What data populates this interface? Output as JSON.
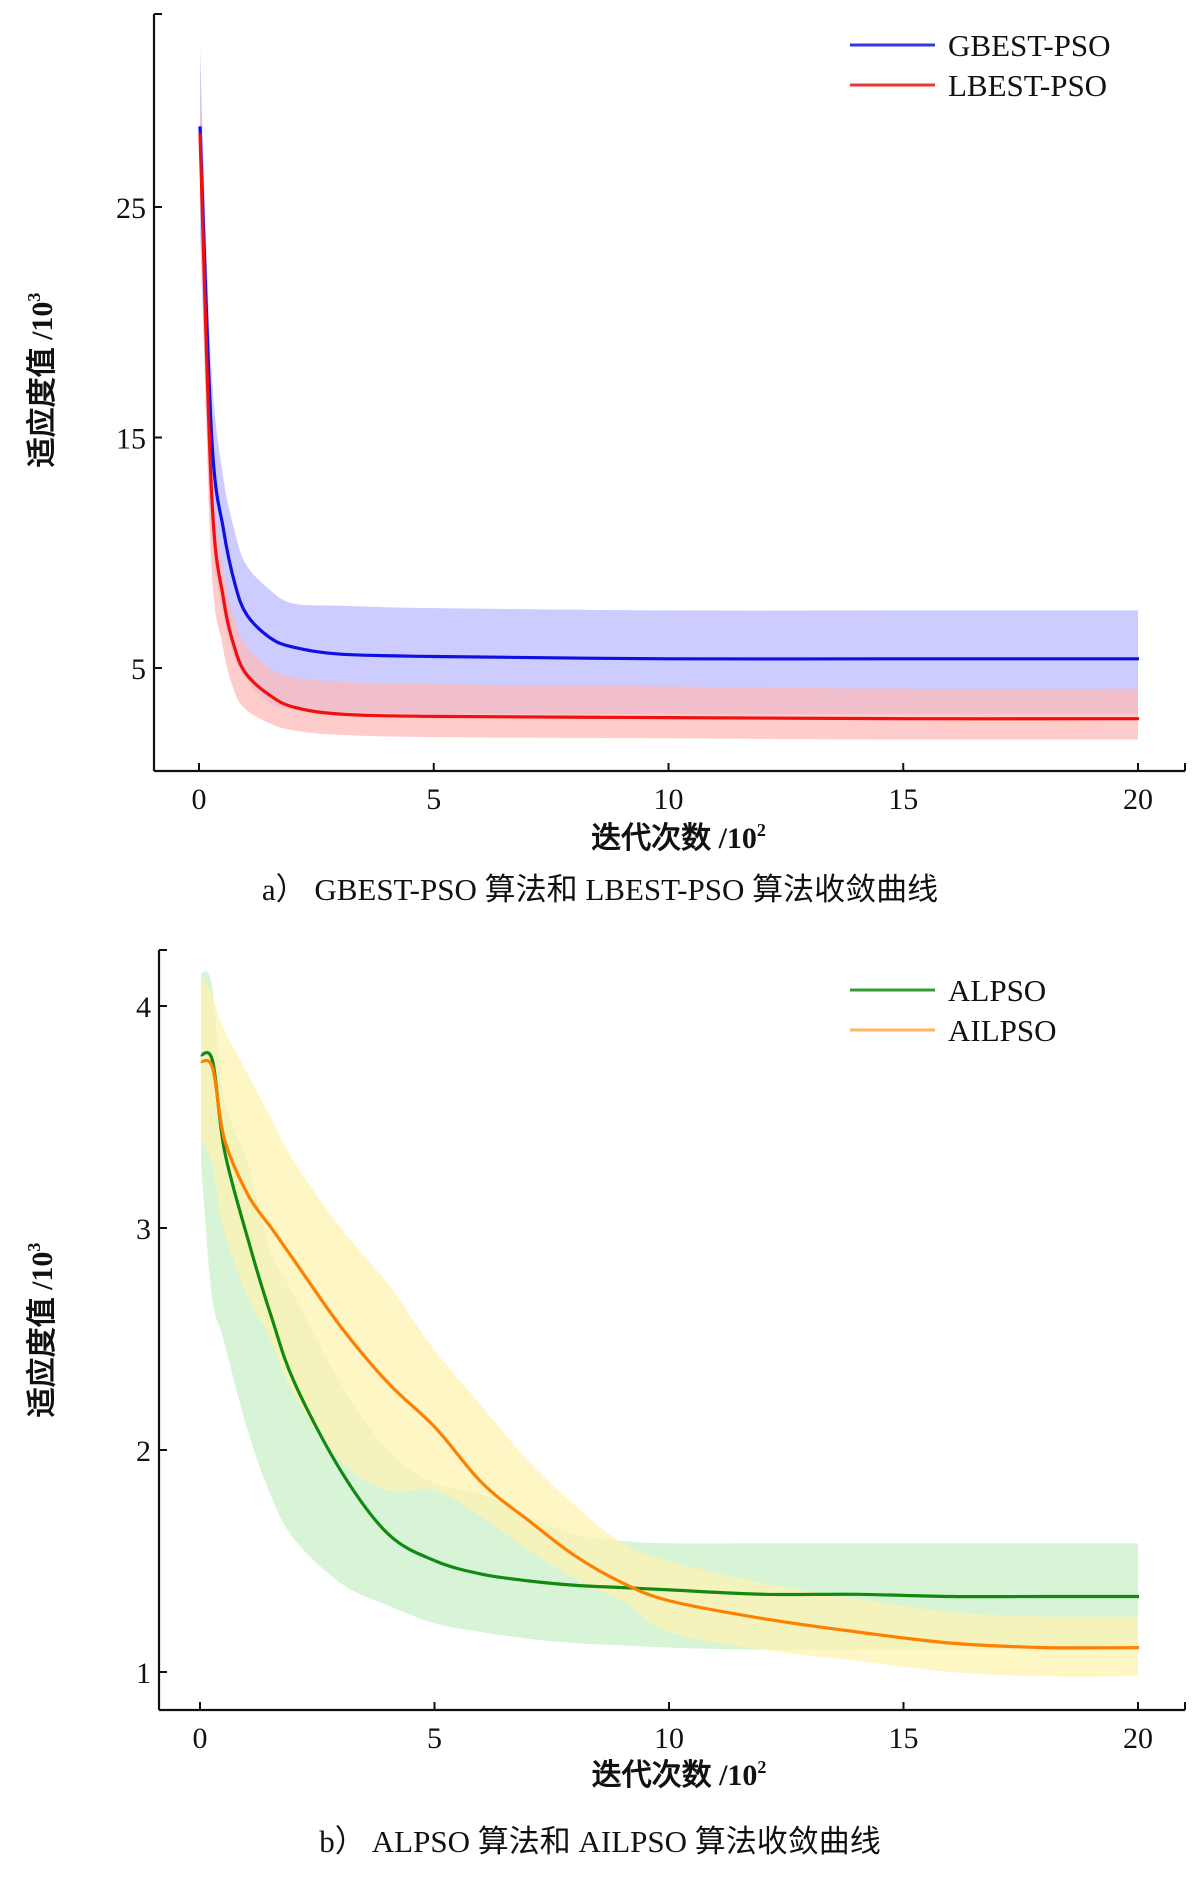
{
  "chart_data": [
    {
      "type": "line",
      "panel": "a",
      "caption": "a） GBEST-PSO 算法和 LBEST-PSO 算法收敛曲线",
      "xlabel": "迭代次数 /10",
      "xlabel_exp": "2",
      "ylabel": "适应度值 /10",
      "ylabel_exp": "3",
      "xticks": [
        "0",
        "5",
        "10",
        "15",
        "20"
      ],
      "yticks": [
        "5",
        "15",
        "25"
      ],
      "xlim": [
        -1,
        21
      ],
      "ylim": [
        0.5,
        33.5
      ],
      "legend": [
        "GBEST-PSO",
        "LBEST-PSO"
      ],
      "legend_position": "upper right",
      "grid": false,
      "x": [
        0,
        0.25,
        0.5,
        0.75,
        1,
        1.5,
        2,
        3,
        5,
        10,
        15,
        20
      ],
      "series": [
        {
          "name": "GBEST-PSO",
          "color": "#1010e0",
          "band_color": "#b8b8ff",
          "values": [
            28.5,
            15.0,
            11.0,
            8.6,
            7.3,
            6.3,
            5.9,
            5.6,
            5.5,
            5.4,
            5.4,
            5.4
          ],
          "upper": [
            31.9,
            18.5,
            13.5,
            11.0,
            9.5,
            8.4,
            7.8,
            7.7,
            7.6,
            7.5,
            7.5,
            7.5
          ],
          "lower": [
            24.0,
            11.5,
            7.5,
            5.5,
            4.5,
            3.5,
            3.2,
            3.1,
            3.0,
            3.0,
            3.0,
            3.0
          ]
        },
        {
          "name": "LBEST-PSO",
          "color": "#f01010",
          "band_color": "#ffb8b8",
          "values": [
            28.2,
            12.5,
            8.0,
            5.8,
            4.7,
            3.8,
            3.3,
            3.0,
            2.9,
            2.85,
            2.8,
            2.8
          ],
          "upper": [
            30.0,
            14.5,
            9.5,
            7.2,
            6.0,
            5.0,
            4.6,
            4.4,
            4.3,
            4.2,
            4.1,
            4.1
          ],
          "lower": [
            26.0,
            10.0,
            6.0,
            4.0,
            3.2,
            2.6,
            2.3,
            2.1,
            2.0,
            1.95,
            1.9,
            1.9
          ]
        }
      ]
    },
    {
      "type": "line",
      "panel": "b",
      "caption": "b） ALPSO 算法和 AILPSO 算法收敛曲线",
      "xlabel": "迭代次数 /10",
      "xlabel_exp": "2",
      "ylabel": "适应度值 /10",
      "ylabel_exp": "3",
      "xticks": [
        "0",
        "5",
        "10",
        "15",
        "20"
      ],
      "yticks": [
        "1",
        "2",
        "3",
        "4"
      ],
      "xlim": [
        -1,
        21
      ],
      "ylim": [
        0.83,
        4.3
      ],
      "legend": [
        "ALPSO",
        "AILPSO"
      ],
      "legend_position": "upper right",
      "grid": false,
      "x": [
        0,
        0.25,
        0.5,
        1,
        1.5,
        2,
        3,
        4,
        5,
        6,
        7,
        8,
        9,
        10,
        12,
        14,
        16,
        18,
        20
      ],
      "series": [
        {
          "name": "ALPSO",
          "color": "#128a12",
          "band_color": "#c8f0c8",
          "values": [
            3.78,
            3.75,
            3.35,
            2.95,
            2.6,
            2.3,
            1.9,
            1.62,
            1.5,
            1.44,
            1.41,
            1.39,
            1.38,
            1.37,
            1.35,
            1.35,
            1.34,
            1.34,
            1.34
          ],
          "upper": [
            4.15,
            4.1,
            3.6,
            3.3,
            2.9,
            2.7,
            2.3,
            2.0,
            1.85,
            1.8,
            1.7,
            1.62,
            1.59,
            1.58,
            1.58,
            1.58,
            1.58,
            1.58,
            1.58
          ],
          "lower": [
            3.3,
            2.7,
            2.5,
            2.1,
            1.8,
            1.6,
            1.4,
            1.3,
            1.22,
            1.18,
            1.15,
            1.13,
            1.12,
            1.11,
            1.1,
            1.1,
            1.1,
            1.1,
            1.1
          ]
        },
        {
          "name": "AILPSO",
          "color": "#ff8000",
          "band_color": "#fff2b0",
          "values": [
            3.75,
            3.72,
            3.4,
            3.15,
            3.0,
            2.85,
            2.55,
            2.3,
            2.1,
            1.85,
            1.68,
            1.52,
            1.4,
            1.32,
            1.24,
            1.18,
            1.13,
            1.11,
            1.11
          ],
          "upper": [
            4.15,
            4.05,
            3.9,
            3.7,
            3.5,
            3.3,
            3.0,
            2.75,
            2.45,
            2.2,
            1.95,
            1.75,
            1.58,
            1.5,
            1.4,
            1.33,
            1.27,
            1.25,
            1.25
          ],
          "lower": [
            3.4,
            3.3,
            3.0,
            2.7,
            2.5,
            2.25,
            1.95,
            1.82,
            1.82,
            1.7,
            1.55,
            1.42,
            1.32,
            1.18,
            1.1,
            1.05,
            1.0,
            0.98,
            0.98
          ]
        }
      ]
    }
  ]
}
